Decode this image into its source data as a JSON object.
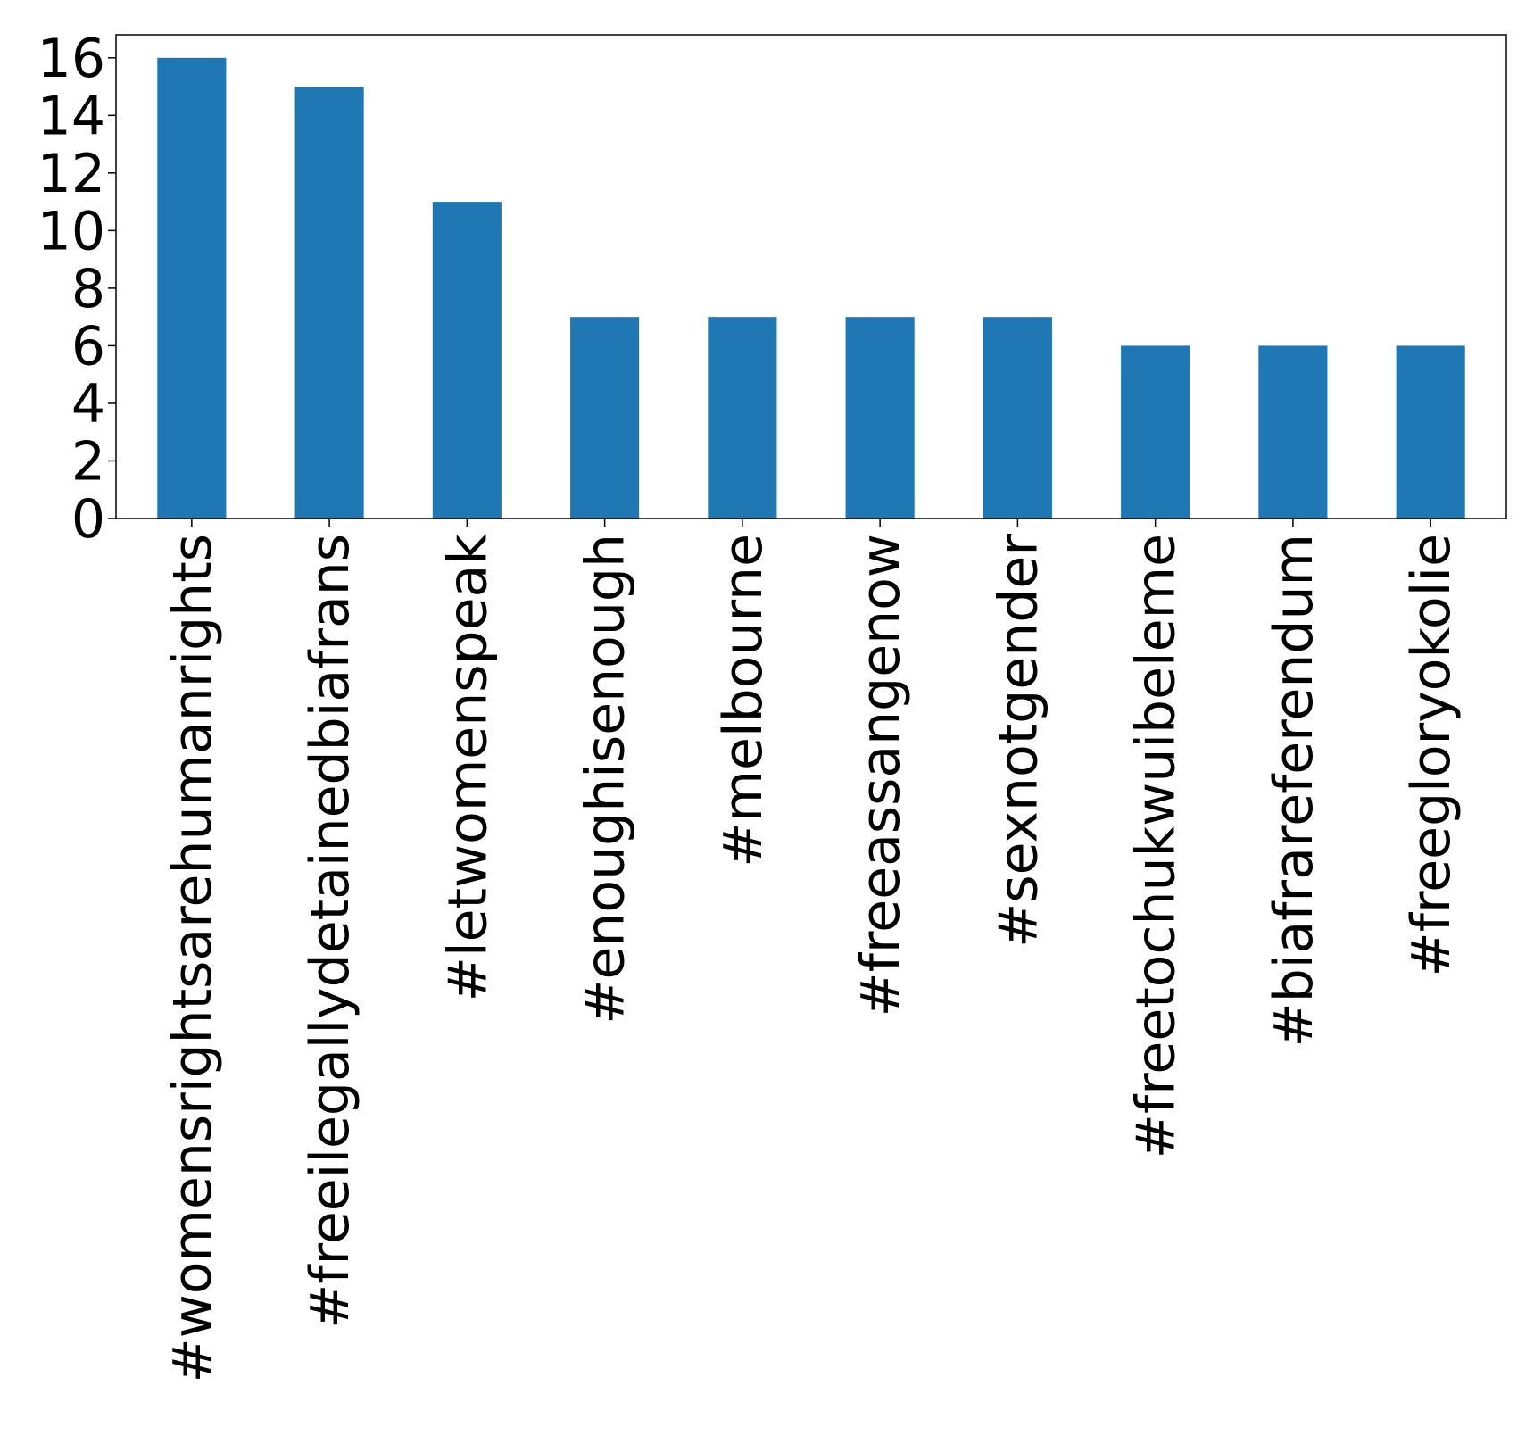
{
  "chart_data": {
    "type": "bar",
    "title": "",
    "xlabel": "",
    "ylabel": "",
    "categories": [
      "#womensrightsarehumanrights",
      "#freeilegallydetainedbiafrans",
      "#letwomenspeak",
      "#enoughisenough",
      "#melbourne",
      "#freeassangenow",
      "#sexnotgender",
      "#freetochukwuibeleme",
      "#biafrareferendum",
      "#freegloryokolie"
    ],
    "values": [
      16,
      15,
      11,
      7,
      7,
      7,
      7,
      6,
      6,
      6
    ],
    "ylim": [
      0,
      16.8
    ],
    "yticks": [
      0,
      2,
      4,
      6,
      8,
      10,
      12,
      14,
      16
    ],
    "grid": false,
    "legend": "none",
    "colors": {
      "bar": "#1f77b4",
      "axis": "#000000",
      "background": "#ffffff"
    }
  }
}
